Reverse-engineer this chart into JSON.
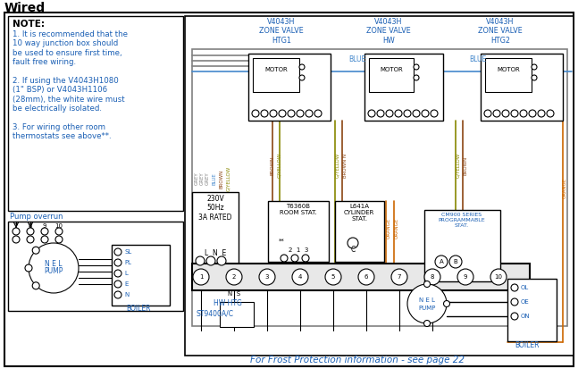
{
  "title": "Wired",
  "bg_color": "#ffffff",
  "note_title": "NOTE:",
  "note_lines": [
    "1. It is recommended that the",
    "10 way junction box should",
    "be used to ensure first time,",
    "fault free wiring.",
    "",
    "2. If using the V4043H1080",
    "(1\" BSP) or V4043H1106",
    "(28mm), the white wire must",
    "be electrically isolated.",
    "",
    "3. For wiring other room",
    "thermostats see above**."
  ],
  "zone_valve_labels": [
    "V4043H\nZONE VALVE\nHTG1",
    "V4043H\nZONE VALVE\nHW",
    "V4043H\nZONE VALVE\nHTG2"
  ],
  "bottom_note": "For Frost Protection information - see page 22",
  "pump_overrun_label": "Pump overrun",
  "boiler_label": "BOILER",
  "hw_htg_label": "HW HTG",
  "st9400_label": "ST9400A/C",
  "cm900_label": "CM900 SERIES\nPROGRAMMABLE\nSTAT.",
  "t6360b_label": "T6360B\nROOM STAT.",
  "l641a_label": "L641A\nCYLINDER\nSTAT.",
  "supply_label": "230V\n50Hz\n3A RATED",
  "supply_lne": "L  N  E",
  "blue_label": "BLUE",
  "grey_labels": [
    "GREY",
    "GREY",
    "GREY"
  ],
  "wire_vert_labels_htg1": [
    "BLUE",
    "BROWN",
    "G/YELLOW"
  ],
  "wire_vert_labels_hw": [
    "G/YELLOW",
    "BROWN"
  ],
  "wire_vert_labels_htg2": [
    "G/YELLOW",
    "BROWN"
  ],
  "orange_label": "ORANGE",
  "colors": {
    "grey": "#808080",
    "blue": "#4488cc",
    "brown": "#8B4513",
    "gyellow": "#888800",
    "orange": "#cc6600",
    "black": "#000000",
    "white": "#ffffff",
    "text_blue": "#1a5fb4",
    "light_grey": "#e8e8e8"
  }
}
